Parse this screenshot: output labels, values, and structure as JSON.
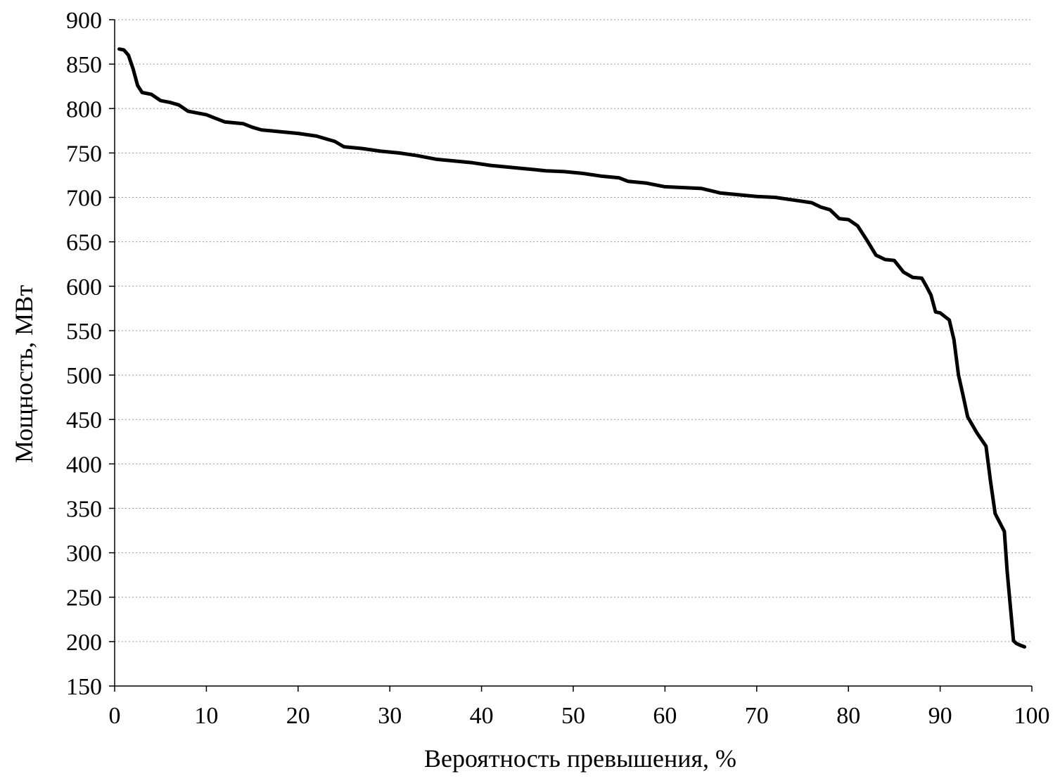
{
  "chart_data": {
    "type": "line",
    "xlabel": "Вероятность превышения, %",
    "ylabel": "Мощность, МВт",
    "xlim": [
      0,
      100
    ],
    "ylim": [
      150,
      900
    ],
    "xticks": [
      "0",
      "10",
      "20",
      "30",
      "40",
      "50",
      "60",
      "70",
      "80",
      "90",
      "100"
    ],
    "yticks": [
      "150",
      "200",
      "250",
      "300",
      "350",
      "400",
      "450",
      "500",
      "550",
      "600",
      "650",
      "700",
      "750",
      "800",
      "850",
      "900"
    ],
    "grid": "horizontal",
    "series": [
      {
        "x": [
          0.5,
          1,
          1.5,
          2,
          2.5,
          3,
          4,
          5,
          6,
          7,
          8,
          9,
          10,
          11,
          12,
          13,
          14,
          15,
          16,
          18,
          20,
          22,
          24,
          25,
          27,
          29,
          31,
          33,
          35,
          37,
          39,
          41,
          43,
          45,
          47,
          49,
          51,
          53,
          55,
          56,
          58,
          60,
          62,
          64,
          66,
          68,
          70,
          72,
          74,
          76,
          77,
          78,
          79,
          80,
          81,
          82,
          83,
          84,
          85,
          86,
          87,
          88,
          88.5,
          89,
          89.5,
          90,
          91,
          91.5,
          92,
          92.5,
          93,
          94,
          95,
          95.5,
          96,
          97,
          97.3,
          97.6,
          98,
          98.3,
          98.7,
          99.2
        ],
        "values": [
          867,
          866,
          860,
          845,
          826,
          818,
          816,
          809,
          807,
          804,
          797,
          795,
          793,
          789,
          785,
          784,
          783,
          779,
          776,
          774,
          772,
          769,
          763,
          757,
          755,
          752,
          750,
          747,
          743,
          741,
          739,
          736,
          734,
          732,
          730,
          729,
          727,
          724,
          722,
          718,
          716,
          712,
          711,
          710,
          705,
          703,
          701,
          700,
          697,
          694,
          689,
          686,
          676,
          675,
          668,
          652,
          635,
          630,
          629,
          616,
          610,
          609,
          600,
          590,
          571,
          570,
          562,
          540,
          500,
          477,
          453,
          435,
          420,
          380,
          344,
          324,
          280,
          246,
          201,
          198,
          196,
          194
        ]
      }
    ]
  }
}
